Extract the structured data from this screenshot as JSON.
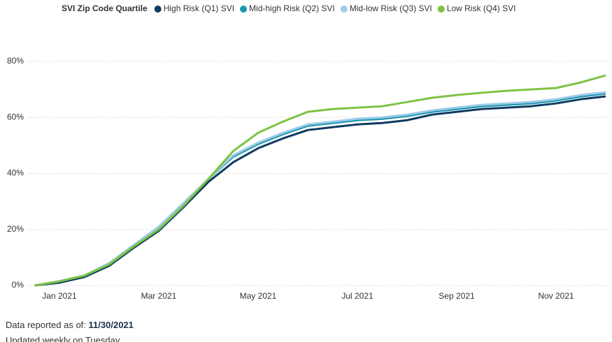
{
  "chart_data": {
    "type": "line",
    "legend_title": "SVI Zip Code Quartile",
    "categories": [
      null,
      "Jan 2021",
      null,
      null,
      null,
      "Mar 2021",
      null,
      null,
      null,
      "May 2021",
      null,
      null,
      null,
      "Jul 2021",
      null,
      null,
      null,
      "Sep 2021",
      null,
      null,
      null,
      "Nov 2021",
      null,
      null
    ],
    "series": [
      {
        "name": "High Risk (Q1) SVI",
        "color": "#0e3a61",
        "values": [
          0,
          1,
          3,
          7,
          13.5,
          19.5,
          28,
          37,
          44,
          49,
          52.5,
          55.5,
          56.5,
          57.5,
          58,
          59,
          61,
          62,
          63,
          63.5,
          64,
          65,
          66.5,
          67.5
        ]
      },
      {
        "name": "Mid-high Risk (Q2) SVI",
        "color": "#1a96ae",
        "values": [
          0,
          1.5,
          3.5,
          7.5,
          14,
          20.5,
          29,
          38,
          46,
          50.5,
          54,
          57,
          58,
          59,
          59.5,
          60.5,
          62,
          63,
          64,
          64.5,
          65,
          66,
          67.5,
          68.5
        ]
      },
      {
        "name": "Mid-low Risk (Q3) SVI",
        "color": "#9ccbe8",
        "values": [
          0,
          1.5,
          3.5,
          8,
          14.5,
          21,
          29.5,
          38,
          46.5,
          51,
          54.5,
          57.5,
          58.5,
          59.5,
          60,
          61,
          62.5,
          63.5,
          64.5,
          65,
          65.5,
          66.5,
          68,
          69
        ]
      },
      {
        "name": "Low Risk (Q4) SVI",
        "color": "#7dc242",
        "values": [
          0,
          1.5,
          3.5,
          7.5,
          14,
          20,
          28.5,
          38,
          48,
          54.5,
          58.5,
          62,
          63,
          63.5,
          64,
          65.5,
          67,
          68,
          68.8,
          69.5,
          70,
          70.5,
          72.5,
          75
        ]
      }
    ],
    "ylim": [
      0,
      80
    ],
    "yticks": [
      {
        "value": 0,
        "label": "0%"
      },
      {
        "value": 20,
        "label": "20%"
      },
      {
        "value": 40,
        "label": "40%"
      },
      {
        "value": 60,
        "label": "60%"
      },
      {
        "value": 80,
        "label": "80%"
      }
    ],
    "grid": true
  },
  "footer": {
    "label": "Data reported as of:",
    "date": "11/30/2021",
    "note": "Updated weekly on Tuesday"
  }
}
